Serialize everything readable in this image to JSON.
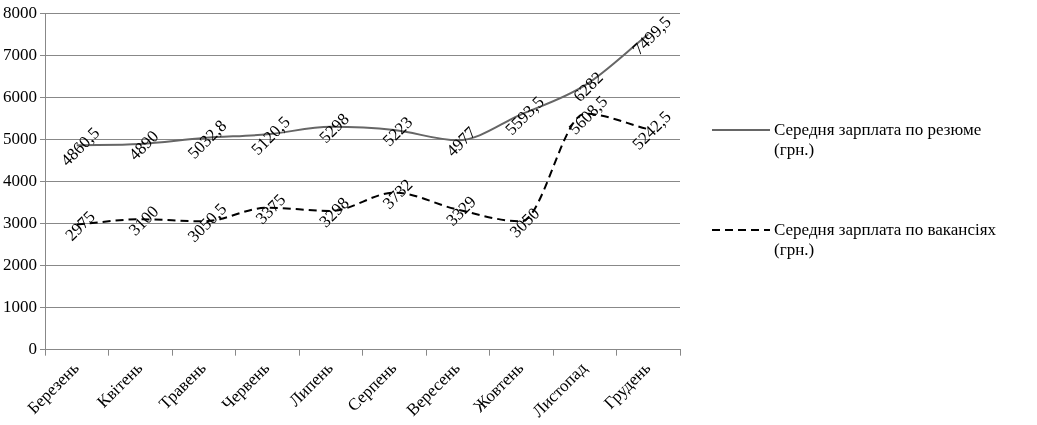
{
  "chart_data": {
    "type": "line",
    "categories": [
      "Березень",
      "Квітень",
      "Травень",
      "Червень",
      "Липень",
      "Серпень",
      "Вересень",
      "Жовтень",
      "Листопад",
      "Грудень"
    ],
    "series": [
      {
        "name": "Середня зарплата по резюме (грн.)",
        "color": "#666666",
        "line_style": "solid",
        "values": [
          4860.5,
          4890,
          5032.8,
          5120.5,
          5298,
          5223,
          4977,
          5593.5,
          6282,
          7499.5
        ],
        "value_labels": [
          "4860,5",
          "4890",
          "5032,8",
          "5120,5",
          "5298",
          "5223",
          "4977",
          "5593,5",
          "6282",
          "7499,5"
        ]
      },
      {
        "name": "Середня зарплата по вакансіях (грн.)",
        "color": "#000000",
        "line_style": "dashed",
        "values": [
          2975,
          3100,
          3050.5,
          3375,
          3298,
          3732,
          3329,
          3050,
          5608.5,
          5242.5
        ],
        "value_labels": [
          "2975",
          "3100",
          "3050,5",
          "3375",
          "3298",
          "3732",
          "3329",
          "3050",
          "5608,5",
          "5242,5"
        ]
      }
    ],
    "ylim": [
      0,
      8000
    ],
    "yticks": [
      0,
      1000,
      2000,
      3000,
      4000,
      5000,
      6000,
      7000,
      8000
    ],
    "grid": "y",
    "legend": "right",
    "marker": "none"
  }
}
